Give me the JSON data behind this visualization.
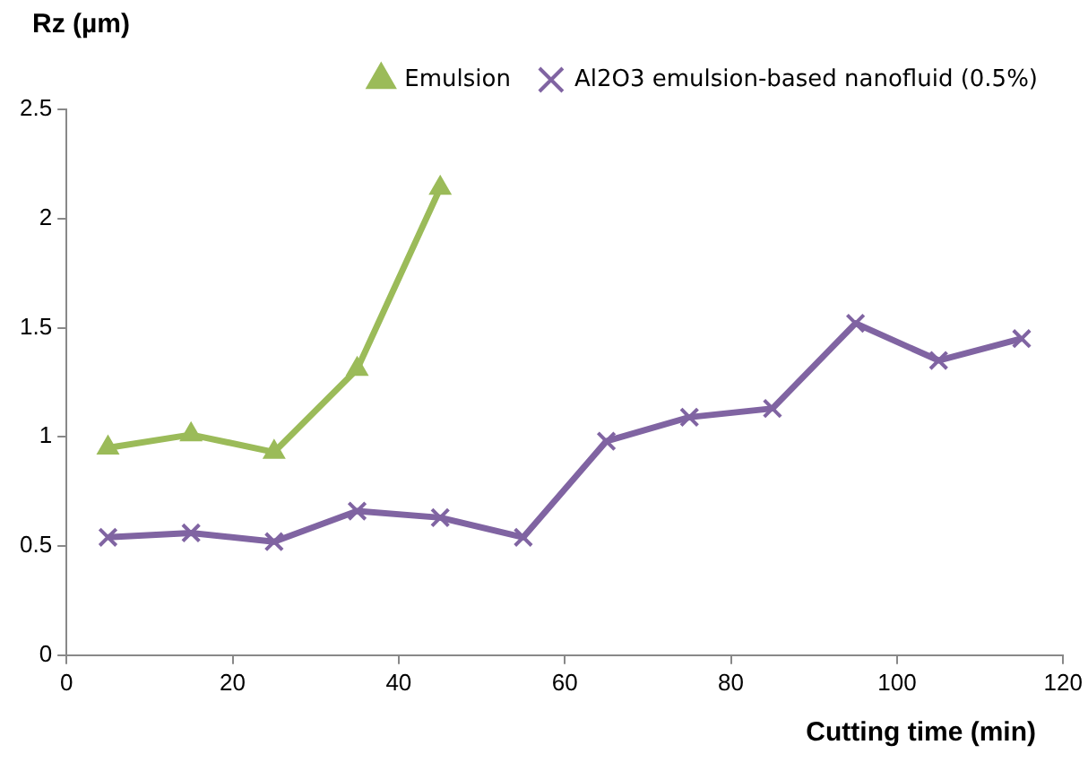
{
  "chart_data": {
    "type": "line",
    "xlabel": "Cutting time (min)",
    "ylabel": "Rz (µm)",
    "xlim": [
      0,
      120
    ],
    "xticks": [
      0,
      20,
      40,
      60,
      80,
      100,
      120
    ],
    "ylim": [
      0,
      2.5
    ],
    "yticks": [
      0,
      0.5,
      1,
      1.5,
      2,
      2.5
    ],
    "grid": false,
    "legend": "top right",
    "series": [
      {
        "name": "Emulsion",
        "color": "#9bbb59",
        "marker": "triangle",
        "x": [
          5,
          15,
          25,
          35,
          45
        ],
        "values": [
          0.95,
          1.01,
          0.93,
          1.31,
          2.14
        ]
      },
      {
        "name": "Al2O3 emulsion-based nanofluid (0.5%)",
        "color": "#8064a2",
        "marker": "cross",
        "x": [
          5,
          15,
          25,
          35,
          45,
          55,
          65,
          75,
          85,
          95,
          105,
          115
        ],
        "values": [
          0.54,
          0.56,
          0.52,
          0.66,
          0.63,
          0.54,
          0.98,
          1.09,
          1.13,
          1.52,
          1.35,
          1.45
        ]
      }
    ]
  }
}
